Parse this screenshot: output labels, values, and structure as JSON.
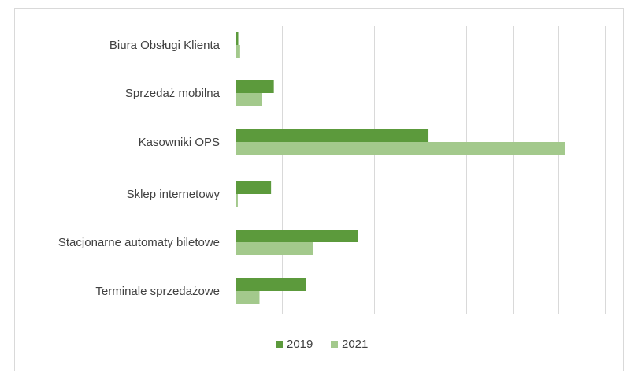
{
  "chart_data": {
    "type": "bar",
    "orientation": "horizontal",
    "title": "",
    "xlabel": "",
    "ylabel": "",
    "categories": [
      "Biura Obsługi Klienta",
      "Sprzedaż mobilna",
      "Kasowniki OPS",
      "Sklep internetowy",
      "Stacjonarne automaty biletowe",
      "Terminale sprzedażowe"
    ],
    "series": [
      {
        "name": "2019",
        "color": "#5c9a3c",
        "values": [
          0.6,
          8.3,
          41.8,
          7.7,
          26.6,
          15.3
        ]
      },
      {
        "name": "2021",
        "color": "#a3c98c",
        "values": [
          1.0,
          5.8,
          71.3,
          0.5,
          16.8,
          5.2
        ]
      }
    ],
    "xlim": [
      0,
      80
    ],
    "x_gridline_step": 10,
    "x_tick_labels_shown": false,
    "grid": true,
    "legend_position": "bottom"
  }
}
